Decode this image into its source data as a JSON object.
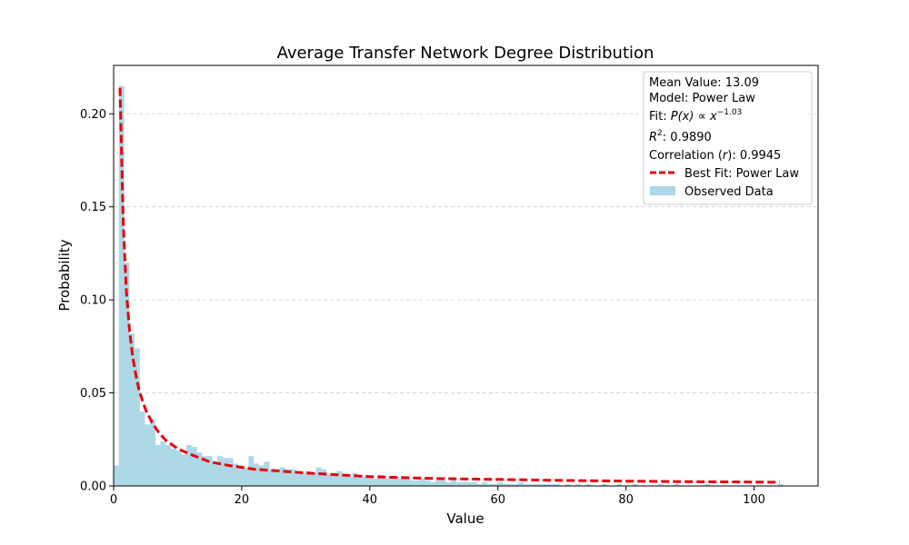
{
  "chart_data": {
    "type": "bar",
    "title": "Average Transfer Network Degree Distribution",
    "xlabel": "Value",
    "ylabel": "Probability",
    "xlim": [
      0,
      110
    ],
    "ylim": [
      0,
      0.226
    ],
    "x_ticks": [
      0,
      20,
      40,
      60,
      80,
      100
    ],
    "y_ticks": [
      0.0,
      0.05,
      0.1,
      0.15,
      0.2
    ],
    "x_tick_labels": [
      "0",
      "20",
      "40",
      "60",
      "80",
      "100"
    ],
    "y_tick_labels": [
      "0.00",
      "0.05",
      "0.10",
      "0.15",
      "0.20"
    ],
    "grid": "y-dashed",
    "bin_width": 0.81,
    "histogram": {
      "name": "Observed Data",
      "color": "#add8e6",
      "bin_starts": [
        0,
        0.81,
        1.62,
        2.43,
        3.24,
        4.05,
        4.86,
        5.67,
        6.48,
        7.29,
        8.1,
        8.91,
        9.72,
        10.53,
        11.34,
        12.15,
        12.96,
        13.77,
        14.58,
        15.39,
        16.2,
        17.01,
        17.82,
        18.63,
        19.44,
        20.25,
        21.06,
        21.87,
        22.68,
        23.49,
        24.3,
        25.11,
        25.92,
        26.73,
        27.54,
        28.35,
        29.16,
        29.97,
        30.78,
        31.59,
        32.4,
        33.21,
        34.02,
        34.83,
        35.64,
        36.45,
        37.26,
        38.07,
        38.88,
        39.69,
        40.5,
        41.31,
        42.12,
        42.93,
        43.74,
        44.55,
        45.36,
        46.17,
        46.98,
        47.79,
        48.6,
        49.41,
        50.22,
        51.03,
        51.84,
        52.65,
        53.46,
        54.27,
        55.08,
        55.89,
        56.7,
        57.51,
        58.32,
        59.13,
        59.94,
        60.75,
        61.56,
        62.37,
        63.18,
        63.99,
        64.8,
        65.61,
        66.42,
        67.23,
        68.04,
        68.85,
        69.66,
        70.47,
        71.28,
        72.09,
        72.9,
        73.71,
        74.52,
        75.33,
        76.14,
        76.95,
        77.76,
        78.57,
        79.38,
        80.19,
        81.0,
        81.81,
        82.62,
        83.43,
        84.24,
        85.05,
        85.86,
        86.67,
        87.48,
        88.29,
        89.1,
        89.91,
        90.72,
        91.53,
        92.34,
        93.15,
        93.96,
        94.77,
        95.58,
        96.39,
        97.2,
        98.01,
        98.82,
        99.63,
        100.44,
        101.25,
        102.06,
        102.87,
        103.68
      ],
      "values": [
        0.011,
        0.215,
        0.12,
        0.082,
        0.074,
        0.04,
        0.033,
        0.036,
        0.022,
        0.024,
        0.022,
        0.02,
        0.019,
        0.017,
        0.022,
        0.021,
        0.018,
        0.016,
        0.016,
        0.013,
        0.016,
        0.015,
        0.015,
        0.012,
        0.011,
        0.01,
        0.016,
        0.012,
        0.011,
        0.013,
        0.009,
        0.009,
        0.01,
        0.009,
        0.009,
        0.008,
        0.007,
        0.008,
        0.007,
        0.01,
        0.009,
        0.006,
        0.006,
        0.008,
        0.005,
        0.005,
        0.007,
        0.006,
        0.005,
        0.005,
        0.004,
        0.006,
        0.004,
        0.005,
        0.005,
        0.004,
        0.004,
        0.003,
        0.003,
        0.004,
        0.003,
        0.002,
        0.003,
        0.003,
        0.002,
        0.003,
        0.002,
        0.002,
        0.002,
        0.002,
        0.001,
        0.002,
        0.001,
        0.001,
        0.002,
        0.001,
        0.001,
        0.001,
        0.002,
        0.001,
        0.001,
        0.001,
        0.001,
        0.001,
        0.001,
        0.001,
        0.0,
        0.001,
        0.0,
        0.001,
        0.0,
        0.001,
        0.0,
        0.0,
        0.001,
        0.0,
        0.0,
        0.001,
        0.0,
        0.0,
        0.001,
        0.0,
        0.0,
        0.0,
        0.0,
        0.001,
        0.0,
        0.0,
        0.001,
        0.0,
        0.0,
        0.0,
        0.0,
        0.0,
        0.001,
        0.0,
        0.0,
        0.0,
        0.0,
        0.0,
        0.0,
        0.0,
        0.0,
        0.0,
        0.0,
        0.0,
        0.0,
        0.0,
        0.001
      ]
    },
    "fit_line": {
      "name": "Best Fit: Power Law",
      "color": "#e8000b",
      "style": "dashed",
      "x": [
        1.0,
        1.5,
        2.0,
        2.5,
        3.0,
        3.5,
        4.0,
        5.0,
        6.0,
        7.0,
        8.0,
        10.0,
        12.0,
        15.0,
        18.0,
        22.0,
        26.0,
        30.0,
        35.0,
        40.0,
        50.0,
        60.0,
        70.0,
        80.0,
        90.0,
        104.0
      ],
      "y": [
        0.214,
        0.141,
        0.104,
        0.083,
        0.069,
        0.059,
        0.051,
        0.041,
        0.034,
        0.029,
        0.025,
        0.02,
        0.017,
        0.013,
        0.011,
        0.009,
        0.008,
        0.007,
        0.006,
        0.005,
        0.004,
        0.0035,
        0.003,
        0.0026,
        0.0023,
        0.002
      ]
    },
    "legend": {
      "position": "top-right",
      "info": {
        "mean": "Mean Value: 13.09",
        "model": "Model: Power Law",
        "fit_prefix": "Fit: ",
        "fit_formula_main": "P(x) ∝ x",
        "fit_exponent": "−1.03",
        "r2_prefix": "R",
        "r2_sup": "2",
        "r2_suffix": ": 0.9890",
        "corr_prefix": "Correlation (",
        "corr_var": "r",
        "corr_suffix": "): 0.9945"
      },
      "entries": [
        "Best Fit: Power Law",
        "Observed Data"
      ]
    }
  }
}
